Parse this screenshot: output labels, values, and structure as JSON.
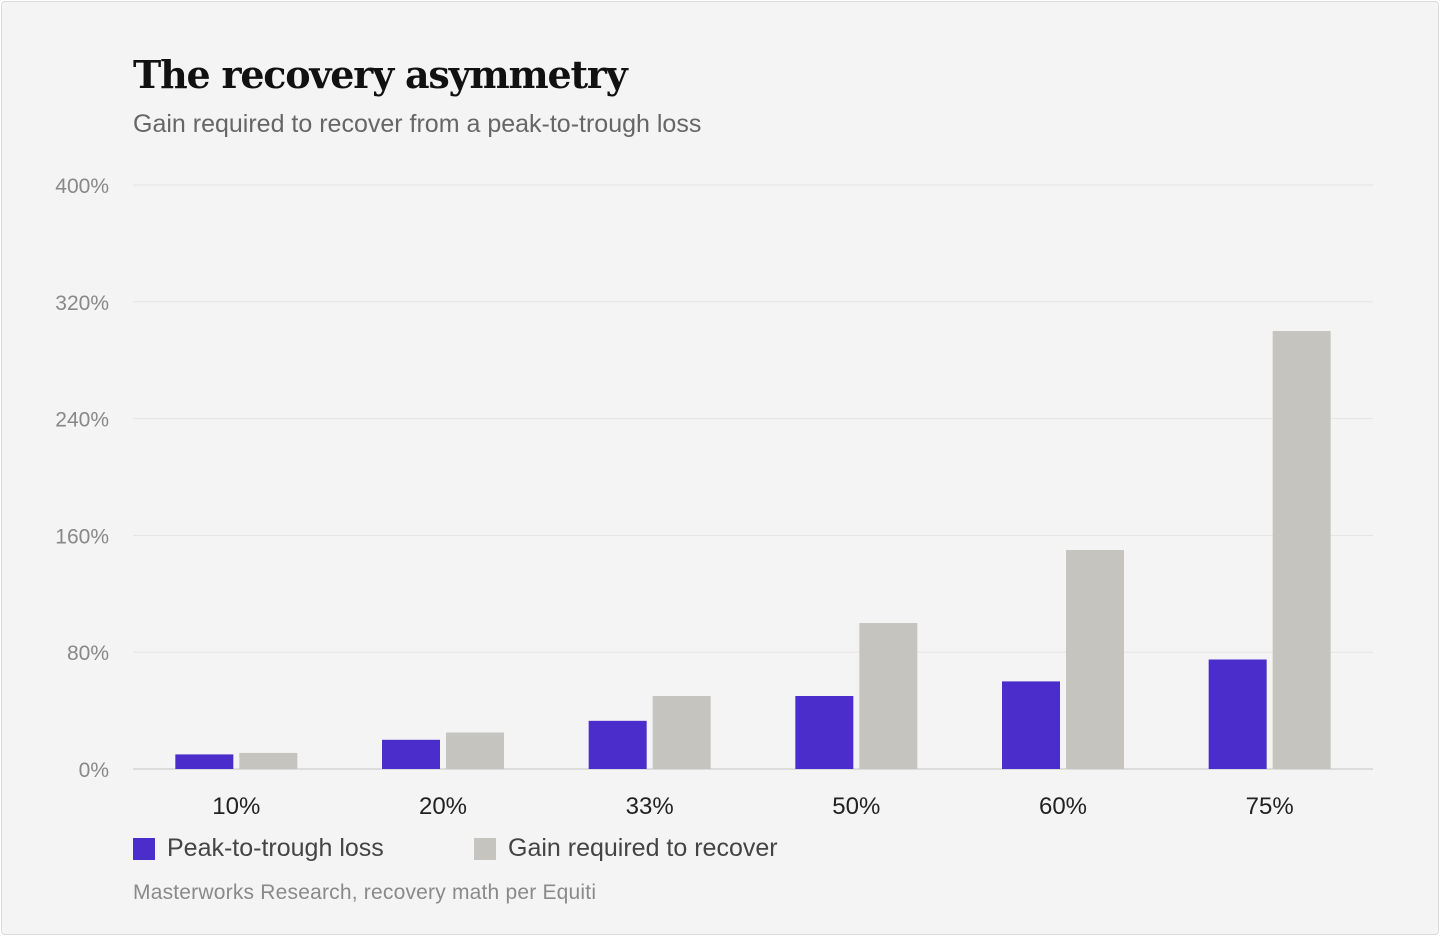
{
  "title": "The recovery asymmetry",
  "subtitle": "Gain required to recover from a peak-to-trough loss",
  "source": "Masterworks Research, recovery math per Equiti",
  "colors": {
    "loss": "#4b2dcb",
    "gain": "#c5c4bf",
    "grid": "#e4e4e4",
    "axis": "#d3d3d3",
    "tick": "#888888",
    "category": "#222222"
  },
  "chart_data": {
    "type": "bar",
    "categories": [
      "10%",
      "20%",
      "33%",
      "50%",
      "60%",
      "75%"
    ],
    "series": [
      {
        "name": "Peak-to-trough loss",
        "values": [
          10,
          20,
          33,
          50,
          60,
          75
        ]
      },
      {
        "name": "Gain required to recover",
        "values": [
          11,
          25,
          50,
          100,
          150,
          300
        ]
      }
    ],
    "ylim": [
      0,
      400
    ],
    "yticks": [
      0,
      80,
      160,
      240,
      320,
      400
    ],
    "ytick_labels": [
      "0%",
      "80%",
      "160%",
      "240%",
      "320%",
      "400%"
    ],
    "grid": true,
    "legend": "bottom-left"
  }
}
